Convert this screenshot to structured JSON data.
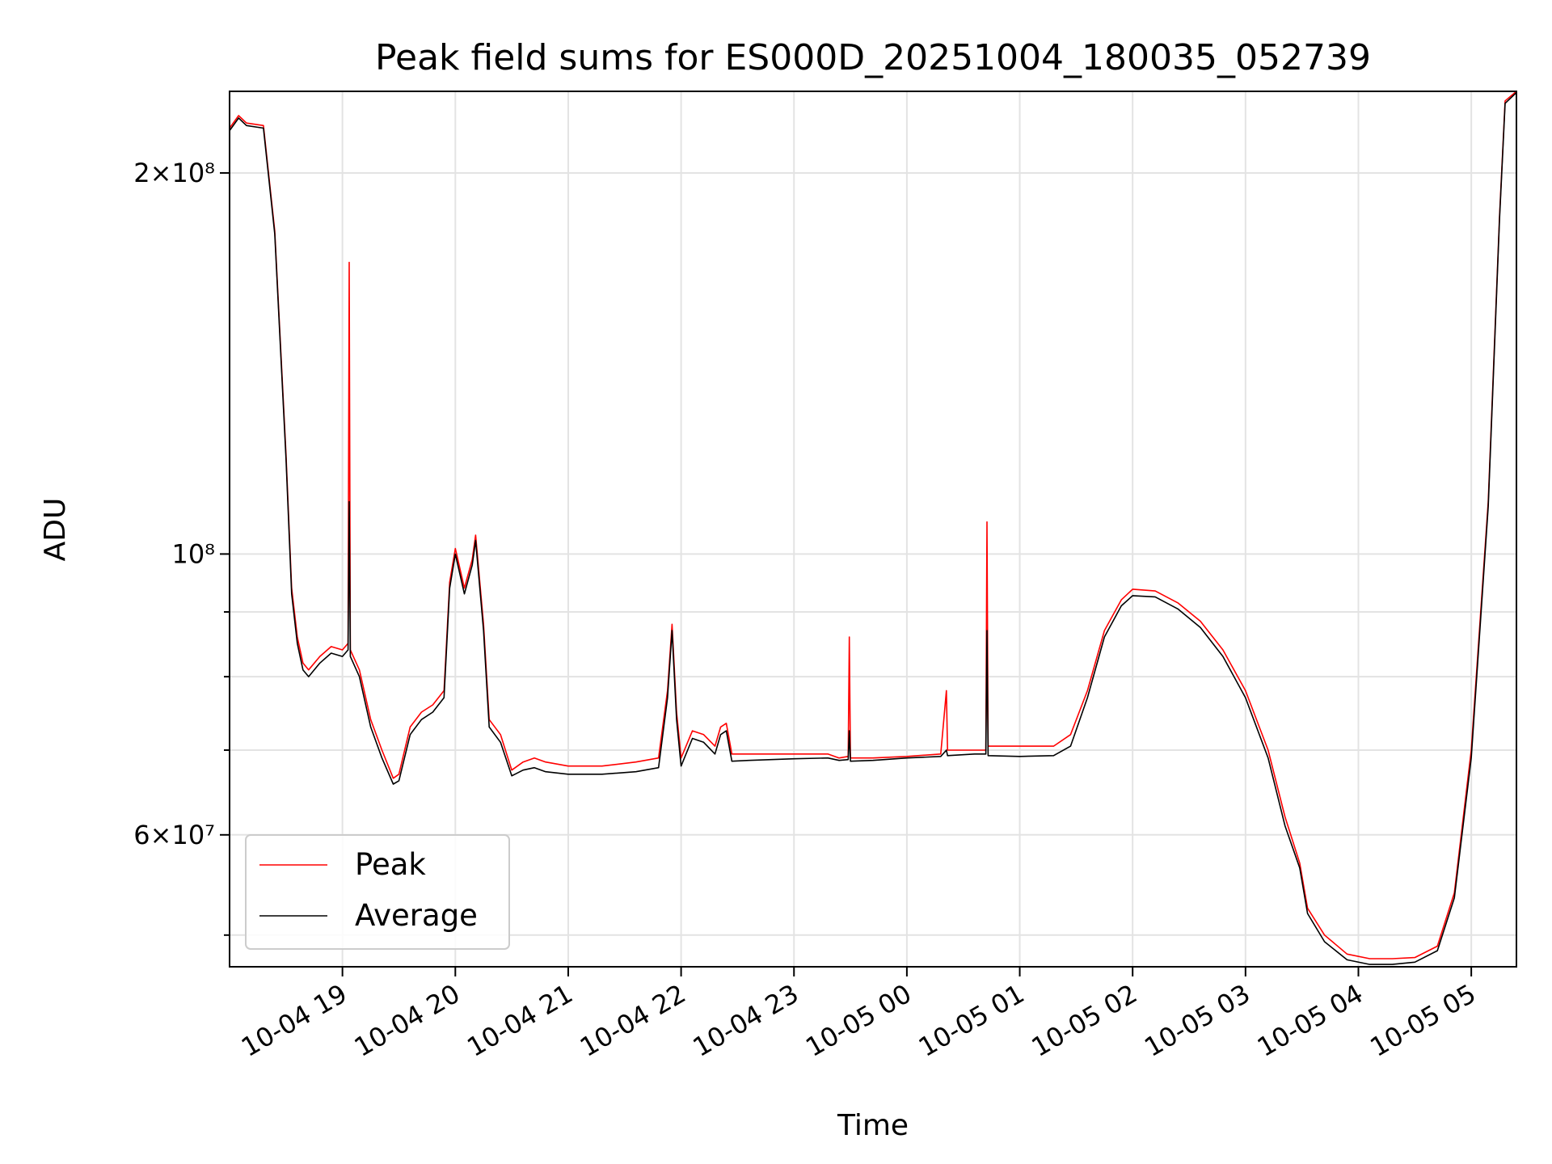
{
  "chart_data": {
    "type": "line",
    "title": "Peak field sums for ES000D_20251004_180035_052739",
    "xlabel": "Time",
    "ylabel": "ADU",
    "yscale": "log",
    "grid": true,
    "legend_position": "lower-left",
    "xlim": [
      0,
      11.4
    ],
    "ylim": [
      47200000,
      232000000
    ],
    "x_units": "hours since 10-04 18:00",
    "x_ticks": [
      {
        "x": 1,
        "label": "10-04 19"
      },
      {
        "x": 2,
        "label": "10-04 20"
      },
      {
        "x": 3,
        "label": "10-04 21"
      },
      {
        "x": 4,
        "label": "10-04 22"
      },
      {
        "x": 5,
        "label": "10-04 23"
      },
      {
        "x": 6,
        "label": "10-05 00"
      },
      {
        "x": 7,
        "label": "10-05 01"
      },
      {
        "x": 8,
        "label": "10-05 02"
      },
      {
        "x": 9,
        "label": "10-05 03"
      },
      {
        "x": 10,
        "label": "10-05 04"
      },
      {
        "x": 11,
        "label": "10-05 05"
      }
    ],
    "y_ticks": [
      {
        "y": 200000000,
        "label": "2×10⁸"
      },
      {
        "y": 100000000,
        "label": "10⁸"
      },
      {
        "y": 60000000,
        "label": "6×10⁷"
      }
    ],
    "y_minor_ticks": [
      50000000,
      70000000,
      80000000,
      90000000
    ],
    "series": [
      {
        "name": "Peak",
        "color": "#ff0000",
        "points": [
          [
            0,
            217000000
          ],
          [
            0.08,
            222000000
          ],
          [
            0.15,
            219000000
          ],
          [
            0.3,
            218000000
          ],
          [
            0.4,
            180000000
          ],
          [
            0.5,
            120000000
          ],
          [
            0.55,
            94000000
          ],
          [
            0.6,
            86000000
          ],
          [
            0.65,
            82000000
          ],
          [
            0.7,
            81000000
          ],
          [
            0.8,
            83000000
          ],
          [
            0.9,
            84500000
          ],
          [
            1.0,
            84000000
          ],
          [
            1.05,
            85000000
          ],
          [
            1.06,
            170000000
          ],
          [
            1.07,
            84000000
          ],
          [
            1.15,
            81000000
          ],
          [
            1.25,
            74000000
          ],
          [
            1.35,
            70000000
          ],
          [
            1.45,
            66500000
          ],
          [
            1.5,
            67000000
          ],
          [
            1.6,
            73000000
          ],
          [
            1.7,
            75000000
          ],
          [
            1.8,
            76000000
          ],
          [
            1.9,
            78000000
          ],
          [
            1.95,
            95000000
          ],
          [
            2.0,
            101000000
          ],
          [
            2.08,
            94000000
          ],
          [
            2.15,
            99000000
          ],
          [
            2.18,
            103500000
          ],
          [
            2.25,
            88000000
          ],
          [
            2.3,
            74000000
          ],
          [
            2.4,
            72000000
          ],
          [
            2.5,
            67500000
          ],
          [
            2.6,
            68500000
          ],
          [
            2.7,
            69000000
          ],
          [
            2.8,
            68500000
          ],
          [
            3.0,
            68000000
          ],
          [
            3.3,
            68000000
          ],
          [
            3.6,
            68500000
          ],
          [
            3.8,
            69000000
          ],
          [
            3.88,
            78000000
          ],
          [
            3.92,
            88000000
          ],
          [
            3.96,
            75000000
          ],
          [
            4.0,
            69000000
          ],
          [
            4.1,
            72500000
          ],
          [
            4.2,
            72000000
          ],
          [
            4.3,
            70500000
          ],
          [
            4.35,
            73000000
          ],
          [
            4.4,
            73500000
          ],
          [
            4.45,
            69500000
          ],
          [
            4.6,
            69500000
          ],
          [
            5.0,
            69500000
          ],
          [
            5.3,
            69500000
          ],
          [
            5.4,
            69000000
          ],
          [
            5.48,
            69200000
          ],
          [
            5.49,
            86000000
          ],
          [
            5.5,
            69000000
          ],
          [
            5.7,
            69000000
          ],
          [
            6.0,
            69200000
          ],
          [
            6.3,
            69500000
          ],
          [
            6.35,
            78000000
          ],
          [
            6.36,
            70000000
          ],
          [
            6.6,
            70000000
          ],
          [
            6.7,
            70000000
          ],
          [
            6.71,
            106000000
          ],
          [
            6.72,
            70500000
          ],
          [
            7.0,
            70500000
          ],
          [
            7.3,
            70500000
          ],
          [
            7.45,
            72000000
          ],
          [
            7.6,
            78000000
          ],
          [
            7.75,
            87000000
          ],
          [
            7.9,
            92000000
          ],
          [
            8.0,
            93800000
          ],
          [
            8.2,
            93500000
          ],
          [
            8.4,
            91500000
          ],
          [
            8.6,
            88500000
          ],
          [
            8.8,
            84000000
          ],
          [
            9.0,
            78000000
          ],
          [
            9.2,
            70000000
          ],
          [
            9.35,
            62000000
          ],
          [
            9.48,
            57000000
          ],
          [
            9.55,
            52500000
          ],
          [
            9.7,
            50000000
          ],
          [
            9.9,
            48300000
          ],
          [
            10.1,
            47900000
          ],
          [
            10.3,
            47900000
          ],
          [
            10.5,
            48000000
          ],
          [
            10.7,
            49000000
          ],
          [
            10.85,
            54000000
          ],
          [
            11.0,
            70000000
          ],
          [
            11.15,
            110000000
          ],
          [
            11.25,
            185000000
          ],
          [
            11.3,
            228000000
          ],
          [
            11.4,
            232000000
          ]
        ]
      },
      {
        "name": "Average",
        "color": "#000000",
        "points": [
          [
            0,
            216000000
          ],
          [
            0.08,
            221000000
          ],
          [
            0.15,
            218000000
          ],
          [
            0.3,
            217000000
          ],
          [
            0.4,
            179000000
          ],
          [
            0.5,
            119000000
          ],
          [
            0.55,
            93000000
          ],
          [
            0.6,
            85000000
          ],
          [
            0.65,
            81000000
          ],
          [
            0.7,
            80000000
          ],
          [
            0.8,
            82000000
          ],
          [
            0.9,
            83500000
          ],
          [
            1.0,
            83000000
          ],
          [
            1.05,
            84000000
          ],
          [
            1.06,
            110000000
          ],
          [
            1.07,
            83000000
          ],
          [
            1.15,
            80000000
          ],
          [
            1.25,
            73000000
          ],
          [
            1.35,
            69000000
          ],
          [
            1.45,
            65800000
          ],
          [
            1.5,
            66200000
          ],
          [
            1.6,
            72000000
          ],
          [
            1.7,
            74000000
          ],
          [
            1.8,
            75000000
          ],
          [
            1.9,
            77000000
          ],
          [
            1.95,
            94000000
          ],
          [
            2.0,
            100000000
          ],
          [
            2.08,
            93000000
          ],
          [
            2.15,
            98000000
          ],
          [
            2.18,
            102500000
          ],
          [
            2.25,
            87000000
          ],
          [
            2.3,
            73000000
          ],
          [
            2.4,
            71000000
          ],
          [
            2.5,
            66800000
          ],
          [
            2.6,
            67500000
          ],
          [
            2.7,
            67800000
          ],
          [
            2.8,
            67300000
          ],
          [
            3.0,
            67000000
          ],
          [
            3.3,
            67000000
          ],
          [
            3.6,
            67300000
          ],
          [
            3.8,
            67800000
          ],
          [
            3.88,
            77000000
          ],
          [
            3.92,
            87000000
          ],
          [
            3.96,
            74000000
          ],
          [
            4.0,
            68000000
          ],
          [
            4.1,
            71500000
          ],
          [
            4.2,
            71000000
          ],
          [
            4.3,
            69500000
          ],
          [
            4.35,
            72000000
          ],
          [
            4.4,
            72500000
          ],
          [
            4.45,
            68600000
          ],
          [
            4.6,
            68700000
          ],
          [
            5.0,
            68900000
          ],
          [
            5.3,
            69000000
          ],
          [
            5.4,
            68700000
          ],
          [
            5.48,
            68800000
          ],
          [
            5.49,
            72500000
          ],
          [
            5.5,
            68600000
          ],
          [
            5.7,
            68700000
          ],
          [
            6.0,
            69000000
          ],
          [
            6.3,
            69200000
          ],
          [
            6.35,
            70000000
          ],
          [
            6.36,
            69300000
          ],
          [
            6.6,
            69500000
          ],
          [
            6.7,
            69500000
          ],
          [
            6.71,
            87000000
          ],
          [
            6.72,
            69300000
          ],
          [
            7.0,
            69200000
          ],
          [
            7.3,
            69300000
          ],
          [
            7.45,
            70500000
          ],
          [
            7.6,
            77000000
          ],
          [
            7.75,
            86000000
          ],
          [
            7.9,
            91000000
          ],
          [
            8.0,
            92700000
          ],
          [
            8.2,
            92500000
          ],
          [
            8.4,
            90500000
          ],
          [
            8.6,
            87500000
          ],
          [
            8.8,
            83000000
          ],
          [
            9.0,
            77000000
          ],
          [
            9.2,
            69000000
          ],
          [
            9.35,
            61000000
          ],
          [
            9.48,
            56500000
          ],
          [
            9.55,
            52000000
          ],
          [
            9.7,
            49400000
          ],
          [
            9.9,
            47800000
          ],
          [
            10.1,
            47400000
          ],
          [
            10.3,
            47400000
          ],
          [
            10.5,
            47600000
          ],
          [
            10.7,
            48600000
          ],
          [
            10.85,
            53500000
          ],
          [
            11.0,
            69000000
          ],
          [
            11.15,
            109000000
          ],
          [
            11.25,
            184000000
          ],
          [
            11.3,
            227000000
          ],
          [
            11.4,
            231500000
          ]
        ]
      }
    ]
  }
}
